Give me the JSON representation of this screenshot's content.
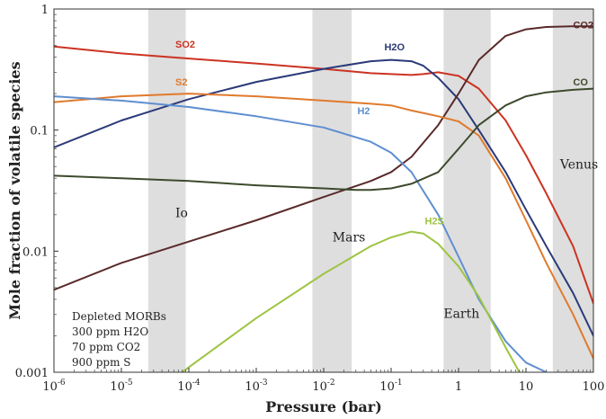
{
  "chart_data": {
    "type": "line",
    "xlabel": "Pressure (bar)",
    "ylabel": "Mole fraction of volatile species",
    "x_scale": "log",
    "y_scale": "log",
    "xlim": [
      1e-06,
      100
    ],
    "ylim": [
      0.001,
      1
    ],
    "x_ticks": [
      {
        "value": 1e-06,
        "base": "10",
        "exp": "-6"
      },
      {
        "value": 1e-05,
        "base": "10",
        "exp": "-5"
      },
      {
        "value": 0.0001,
        "base": "10",
        "exp": "-4"
      },
      {
        "value": 0.001,
        "base": "10",
        "exp": "-3"
      },
      {
        "value": 0.01,
        "base": "10",
        "exp": "-2"
      },
      {
        "value": 0.1,
        "base": "10",
        "exp": "-1"
      },
      {
        "value": 1,
        "base": "1",
        "exp": ""
      },
      {
        "value": 10,
        "base": "10",
        "exp": ""
      },
      {
        "value": 100,
        "base": "100",
        "exp": ""
      }
    ],
    "y_ticks": [
      {
        "value": 0.001,
        "label": "0.001"
      },
      {
        "value": 0.01,
        "label": "0.01"
      },
      {
        "value": 0.1,
        "label": "0.1"
      },
      {
        "value": 1,
        "label": "1"
      }
    ],
    "regions": [
      {
        "label": "Io",
        "x_range": [
          2.5e-05,
          9e-05
        ],
        "label_x": 6.31e-05,
        "label_y": 0.0191
      },
      {
        "label": "Mars",
        "x_range": [
          0.0068,
          0.026
        ],
        "label_x": 0.0135,
        "label_y": 0.012
      },
      {
        "label": "Earth",
        "x_range": [
          0.6,
          3.0
        ],
        "label_x": 0.6,
        "label_y": 0.00282
      },
      {
        "label": "Venus",
        "x_range": [
          25,
          100
        ],
        "label_x": 32,
        "label_y": 0.0479
      }
    ],
    "series": [
      {
        "name": "SO2",
        "color": "#cc3322",
        "label_x": 6.31e-05,
        "label_y": 0.479,
        "x": [
          1e-06,
          1e-05,
          0.0001,
          0.001,
          0.01,
          0.05,
          0.1,
          0.2,
          0.3,
          0.5,
          1,
          2,
          5,
          10,
          20,
          50,
          100
        ],
        "y": [
          0.49,
          0.43,
          0.39,
          0.355,
          0.32,
          0.295,
          0.29,
          0.285,
          0.29,
          0.3,
          0.28,
          0.22,
          0.12,
          0.062,
          0.03,
          0.011,
          0.0037
        ]
      },
      {
        "name": "H2O",
        "color": "#2b3a78",
        "label_x": 0.0794,
        "label_y": 0.457,
        "x": [
          1e-06,
          1e-05,
          0.0001,
          0.001,
          0.01,
          0.05,
          0.1,
          0.2,
          0.3,
          0.5,
          1,
          2,
          5,
          10,
          20,
          50,
          100
        ],
        "y": [
          0.072,
          0.12,
          0.18,
          0.25,
          0.32,
          0.37,
          0.38,
          0.37,
          0.34,
          0.27,
          0.18,
          0.1,
          0.045,
          0.022,
          0.011,
          0.0045,
          0.002
        ]
      },
      {
        "name": "CO2",
        "color": "#5a2a2a",
        "label_x": 50,
        "label_y": 0.692,
        "x": [
          1e-06,
          1e-05,
          0.0001,
          0.001,
          0.01,
          0.05,
          0.1,
          0.2,
          0.5,
          1,
          2,
          5,
          10,
          20,
          50,
          100
        ],
        "y": [
          0.0048,
          0.008,
          0.012,
          0.018,
          0.028,
          0.038,
          0.045,
          0.06,
          0.11,
          0.2,
          0.38,
          0.6,
          0.68,
          0.71,
          0.72,
          0.72
        ]
      },
      {
        "name": "S2",
        "color": "#e07a2c",
        "label_x": 6.31e-05,
        "label_y": 0.234,
        "x": [
          1e-06,
          1e-05,
          0.0001,
          0.001,
          0.01,
          0.05,
          0.1,
          0.2,
          0.5,
          1,
          2,
          5,
          10,
          20,
          50,
          100
        ],
        "y": [
          0.17,
          0.19,
          0.2,
          0.19,
          0.175,
          0.165,
          0.16,
          0.145,
          0.13,
          0.118,
          0.09,
          0.04,
          0.018,
          0.008,
          0.003,
          0.0013
        ]
      },
      {
        "name": "H2",
        "color": "#5f8fd0",
        "label_x": 0.0316,
        "label_y": 0.135,
        "x": [
          1e-06,
          1e-05,
          0.0001,
          0.001,
          0.01,
          0.05,
          0.1,
          0.2,
          0.5,
          1,
          2,
          5,
          10,
          20
        ],
        "y": [
          0.19,
          0.175,
          0.155,
          0.13,
          0.105,
          0.08,
          0.065,
          0.045,
          0.02,
          0.009,
          0.004,
          0.0018,
          0.0012,
          0.001
        ]
      },
      {
        "name": "CO",
        "color": "#3d4a2d",
        "label_x": 50,
        "label_y": 0.234,
        "x": [
          1e-06,
          1e-05,
          0.0001,
          0.001,
          0.01,
          0.03,
          0.05,
          0.1,
          0.2,
          0.5,
          1,
          2,
          5,
          10,
          20,
          50,
          100
        ],
        "y": [
          0.042,
          0.04,
          0.038,
          0.035,
          0.033,
          0.032,
          0.032,
          0.033,
          0.036,
          0.045,
          0.07,
          0.11,
          0.16,
          0.19,
          0.205,
          0.215,
          0.22
        ]
      },
      {
        "name": "H2S",
        "color": "#9ec443",
        "label_x": 0.316,
        "label_y": 0.0166,
        "x": [
          7.94e-05,
          0.0001,
          0.001,
          0.01,
          0.05,
          0.1,
          0.2,
          0.3,
          0.5,
          1,
          2,
          5,
          8
        ],
        "y": [
          0.001,
          0.0011,
          0.0028,
          0.0065,
          0.011,
          0.013,
          0.0145,
          0.014,
          0.0115,
          0.0075,
          0.0042,
          0.0016,
          0.001
        ]
      }
    ],
    "annotation": [
      "Depleted MORBs",
      "300 ppm H2O",
      "70 ppm CO2",
      "900 ppm S"
    ]
  }
}
